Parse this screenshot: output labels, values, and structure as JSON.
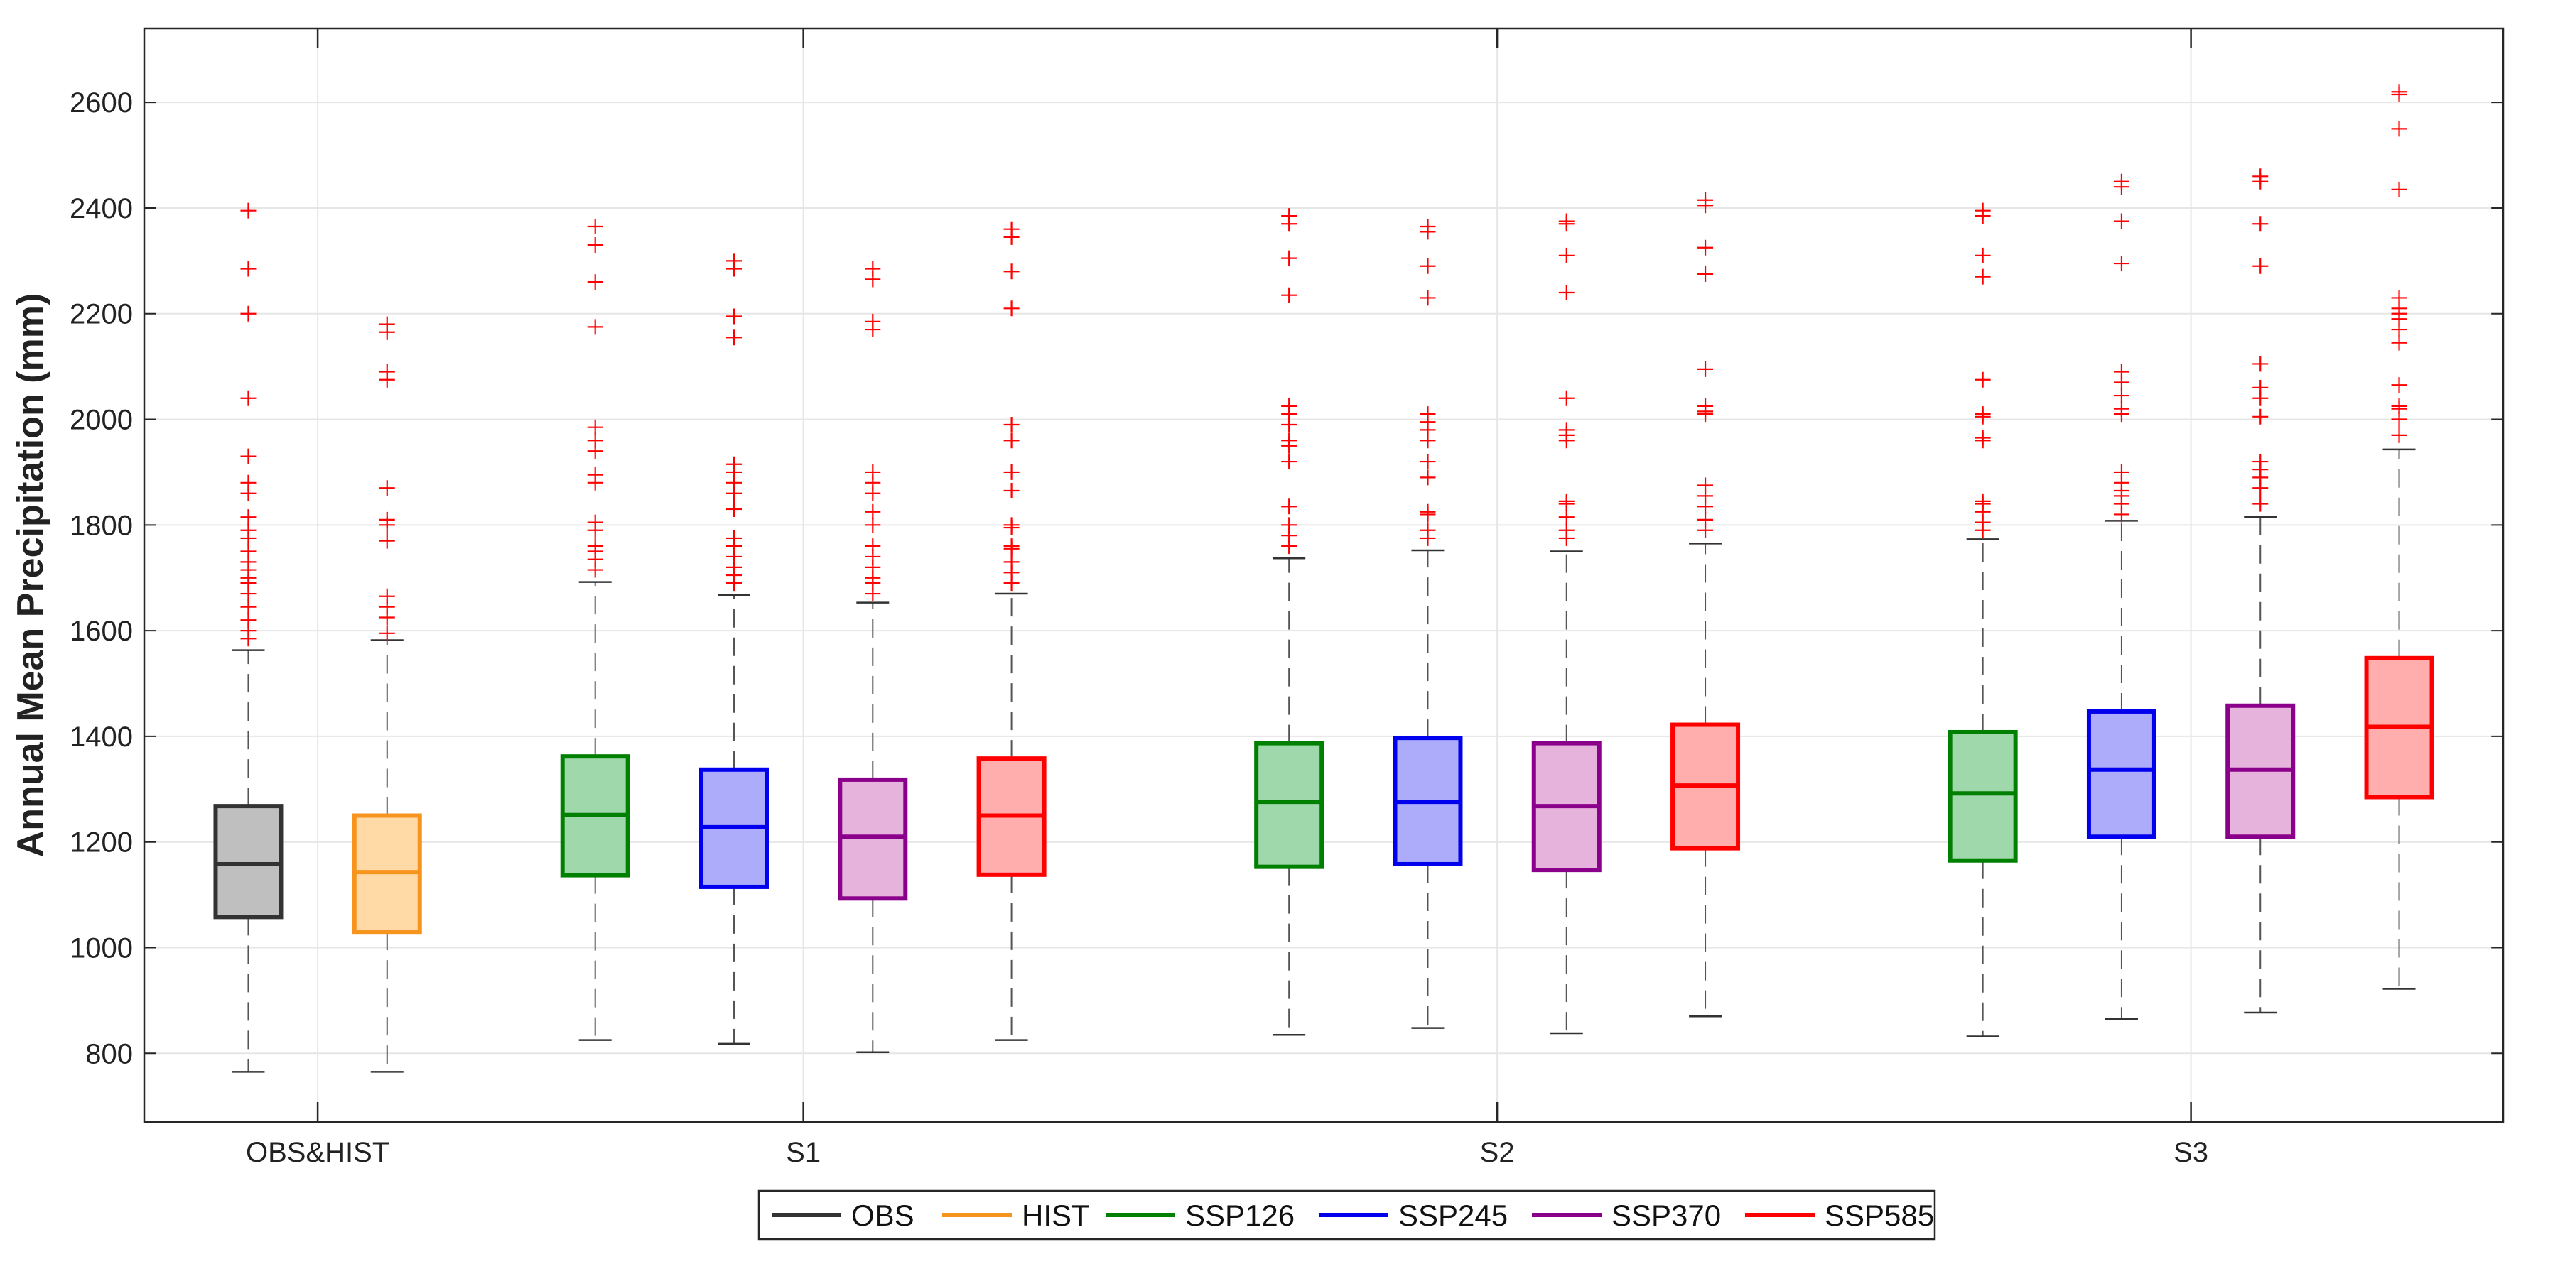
{
  "chart_data": {
    "type": "box",
    "title": "",
    "xlabel": "",
    "ylabel": "Annual Mean Precipitation (mm)",
    "ylim": [
      670,
      2740
    ],
    "yticks": [
      800,
      1000,
      1200,
      1400,
      1600,
      1800,
      2000,
      2200,
      2400,
      2600
    ],
    "grid": true,
    "categories": [
      "OBS&HIST",
      "S1",
      "S2",
      "S3"
    ],
    "legend_position": "bottom-center",
    "series": [
      {
        "name": "OBS",
        "color": "#333333",
        "fill": "#bfbfbf"
      },
      {
        "name": "HIST",
        "color": "#f7941d",
        "fill": "#ffd9a6"
      },
      {
        "name": "SSP126",
        "color": "#008000",
        "fill": "#9fd9ab"
      },
      {
        "name": "SSP245",
        "color": "#0000ee",
        "fill": "#acacfa"
      },
      {
        "name": "SSP370",
        "color": "#8b008b",
        "fill": "#e6b3dc"
      },
      {
        "name": "SSP585",
        "color": "#ff0000",
        "fill": "#ffadad"
      }
    ],
    "boxes": [
      {
        "category": "OBS&HIST",
        "series": "OBS",
        "pos": 0.8,
        "whisker_low": 765,
        "q1": 1058,
        "median": 1158,
        "q3": 1268,
        "whisker_high": 1563,
        "outliers": [
          1585,
          1600,
          1620,
          1645,
          1670,
          1690,
          1700,
          1715,
          1730,
          1750,
          1775,
          1790,
          1815,
          1860,
          1880,
          1930,
          2040,
          2200,
          2285,
          2395
        ]
      },
      {
        "category": "OBS&HIST",
        "series": "HIST",
        "pos": 1.2,
        "whisker_low": 765,
        "q1": 1030,
        "median": 1143,
        "q3": 1250,
        "whisker_high": 1582,
        "outliers": [
          1595,
          1625,
          1645,
          1665,
          1770,
          1800,
          1810,
          1870,
          2075,
          2090,
          2165,
          2180
        ]
      },
      {
        "category": "S1",
        "series": "SSP126",
        "pos": 1.8,
        "whisker_low": 825,
        "q1": 1137,
        "median": 1251,
        "q3": 1362,
        "whisker_high": 1692,
        "outliers": [
          1715,
          1735,
          1750,
          1760,
          1790,
          1805,
          1880,
          1895,
          1940,
          1960,
          1985,
          2175,
          2260,
          2330,
          2365
        ]
      },
      {
        "category": "S1",
        "series": "SSP245",
        "pos": 2.2,
        "whisker_low": 818,
        "q1": 1115,
        "median": 1228,
        "q3": 1337,
        "whisker_high": 1667,
        "outliers": [
          1690,
          1705,
          1720,
          1740,
          1760,
          1775,
          1830,
          1860,
          1880,
          1900,
          1915,
          2155,
          2195,
          2285,
          2300
        ]
      },
      {
        "category": "S1",
        "series": "SSP370",
        "pos": 2.6,
        "whisker_low": 802,
        "q1": 1093,
        "median": 1210,
        "q3": 1318,
        "whisker_high": 1653,
        "outliers": [
          1670,
          1690,
          1700,
          1720,
          1740,
          1760,
          1800,
          1825,
          1860,
          1880,
          1900,
          2170,
          2185,
          2265,
          2285
        ]
      },
      {
        "category": "S1",
        "series": "SSP585",
        "pos": 3.0,
        "whisker_low": 825,
        "q1": 1138,
        "median": 1250,
        "q3": 1358,
        "whisker_high": 1670,
        "outliers": [
          1690,
          1710,
          1730,
          1755,
          1760,
          1795,
          1800,
          1865,
          1900,
          1960,
          1990,
          2210,
          2280,
          2345,
          2360
        ]
      },
      {
        "category": "S2",
        "series": "SSP126",
        "pos": 3.8,
        "whisker_low": 835,
        "q1": 1153,
        "median": 1276,
        "q3": 1387,
        "whisker_high": 1737,
        "outliers": [
          1760,
          1780,
          1800,
          1835,
          1920,
          1950,
          1960,
          1990,
          2010,
          2025,
          2235,
          2305,
          2370,
          2385
        ]
      },
      {
        "category": "S2",
        "series": "SSP245",
        "pos": 4.2,
        "whisker_low": 848,
        "q1": 1158,
        "median": 1276,
        "q3": 1397,
        "whisker_high": 1752,
        "outliers": [
          1775,
          1790,
          1820,
          1825,
          1890,
          1920,
          1960,
          1980,
          1995,
          2010,
          2230,
          2290,
          2355,
          2365
        ]
      },
      {
        "category": "S2",
        "series": "SSP370",
        "pos": 4.6,
        "whisker_low": 838,
        "q1": 1147,
        "median": 1268,
        "q3": 1387,
        "whisker_high": 1750,
        "outliers": [
          1775,
          1790,
          1815,
          1840,
          1845,
          1960,
          1970,
          1980,
          2040,
          2240,
          2310,
          2370,
          2375
        ]
      },
      {
        "category": "S2",
        "series": "SSP585",
        "pos": 5.0,
        "whisker_low": 870,
        "q1": 1188,
        "median": 1307,
        "q3": 1422,
        "whisker_high": 1765,
        "outliers": [
          1790,
          1810,
          1835,
          1855,
          1875,
          2010,
          2015,
          2025,
          2095,
          2275,
          2325,
          2405,
          2415
        ]
      },
      {
        "category": "S3",
        "series": "SSP126",
        "pos": 5.8,
        "whisker_low": 832,
        "q1": 1165,
        "median": 1292,
        "q3": 1408,
        "whisker_high": 1773,
        "outliers": [
          1790,
          1805,
          1825,
          1840,
          1845,
          1960,
          1965,
          2005,
          2010,
          2075,
          2270,
          2310,
          2385,
          2395
        ]
      },
      {
        "category": "S3",
        "series": "SSP245",
        "pos": 6.2,
        "whisker_low": 865,
        "q1": 1210,
        "median": 1337,
        "q3": 1447,
        "whisker_high": 1808,
        "outliers": [
          1820,
          1840,
          1855,
          1865,
          1880,
          1900,
          2010,
          2020,
          2045,
          2070,
          2090,
          2295,
          2375,
          2440,
          2450
        ]
      },
      {
        "category": "S3",
        "series": "SSP370",
        "pos": 6.6,
        "whisker_low": 877,
        "q1": 1210,
        "median": 1337,
        "q3": 1458,
        "whisker_high": 1815,
        "outliers": [
          1840,
          1870,
          1890,
          1905,
          1920,
          2005,
          2040,
          2060,
          2105,
          2290,
          2370,
          2450,
          2460
        ]
      },
      {
        "category": "S3",
        "series": "SSP585",
        "pos": 7.0,
        "whisker_low": 922,
        "q1": 1285,
        "median": 1418,
        "q3": 1548,
        "whisker_high": 1943,
        "outliers": [
          1970,
          2000,
          2020,
          2025,
          2065,
          2145,
          2170,
          2190,
          2200,
          2210,
          2230,
          2435,
          2550,
          2615,
          2620
        ]
      }
    ]
  }
}
